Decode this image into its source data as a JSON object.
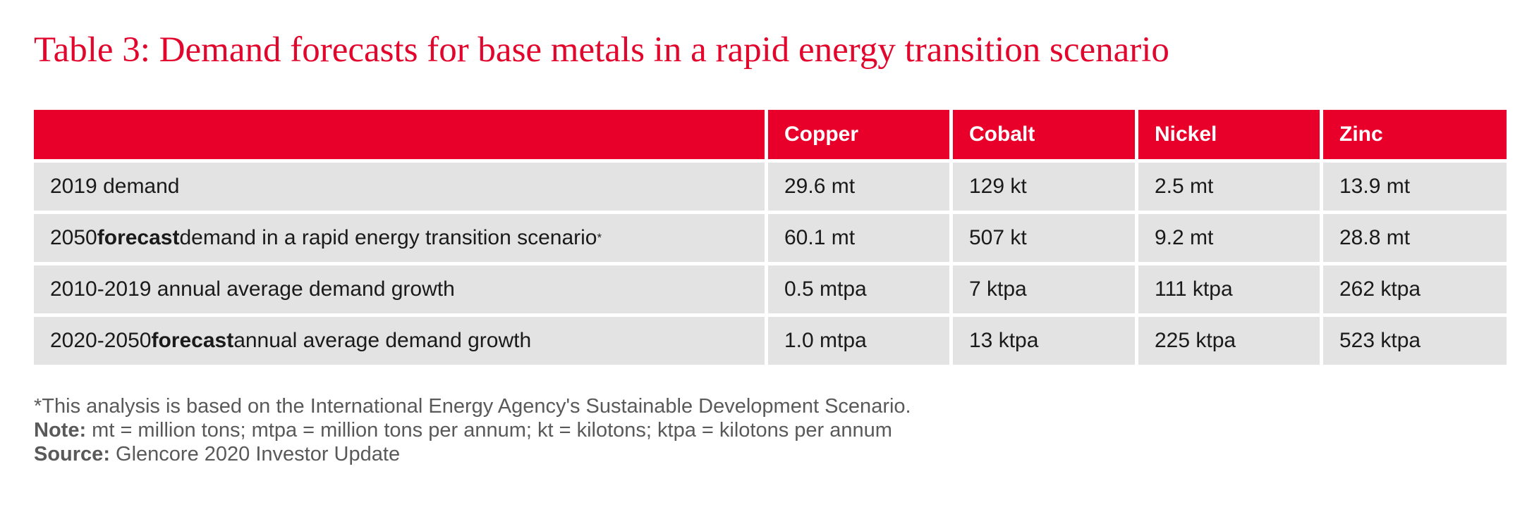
{
  "title": "Table 3: Demand forecasts for base metals in a rapid energy transition scenario",
  "table": {
    "columns": [
      "",
      "Copper",
      "Cobalt",
      "Nickel",
      "Zinc"
    ],
    "rows": [
      {
        "label_pre": "2019 demand",
        "label_bold": "",
        "label_post": "",
        "label_sup": "",
        "values": [
          "29.6 mt",
          "129 kt",
          "2.5 mt",
          "13.9 mt"
        ]
      },
      {
        "label_pre": "2050 ",
        "label_bold": "forecast",
        "label_post": " demand in a rapid energy transition scenario",
        "label_sup": "*",
        "values": [
          "60.1 mt",
          "507 kt",
          "9.2 mt",
          "28.8 mt"
        ]
      },
      {
        "label_pre": "2010-2019 annual average demand growth",
        "label_bold": "",
        "label_post": "",
        "label_sup": "",
        "values": [
          "0.5 mtpa",
          "7 ktpa",
          "111 ktpa",
          "262 ktpa"
        ]
      },
      {
        "label_pre": "2020-2050 ",
        "label_bold": "forecast",
        "label_post": " annual average demand growth",
        "label_sup": "",
        "values": [
          "1.0 mtpa",
          "13 ktpa",
          "225 ktpa",
          "523 ktpa"
        ]
      }
    ]
  },
  "notes": {
    "footnote": "*This analysis is based on the International Energy Agency's Sustainable Development Scenario.",
    "note_label": "Note:",
    "note_text": " mt = million tons; mtpa = million tons per annum; kt = kilotons; ktpa = kilotons per annum",
    "source_label": "Source:",
    "source_text": " Glencore 2020 Investor Update"
  },
  "colors": {
    "accent": "#e8002a",
    "title": "#e2062c",
    "row_background": "#e3e3e3",
    "notes_text": "#595959"
  }
}
